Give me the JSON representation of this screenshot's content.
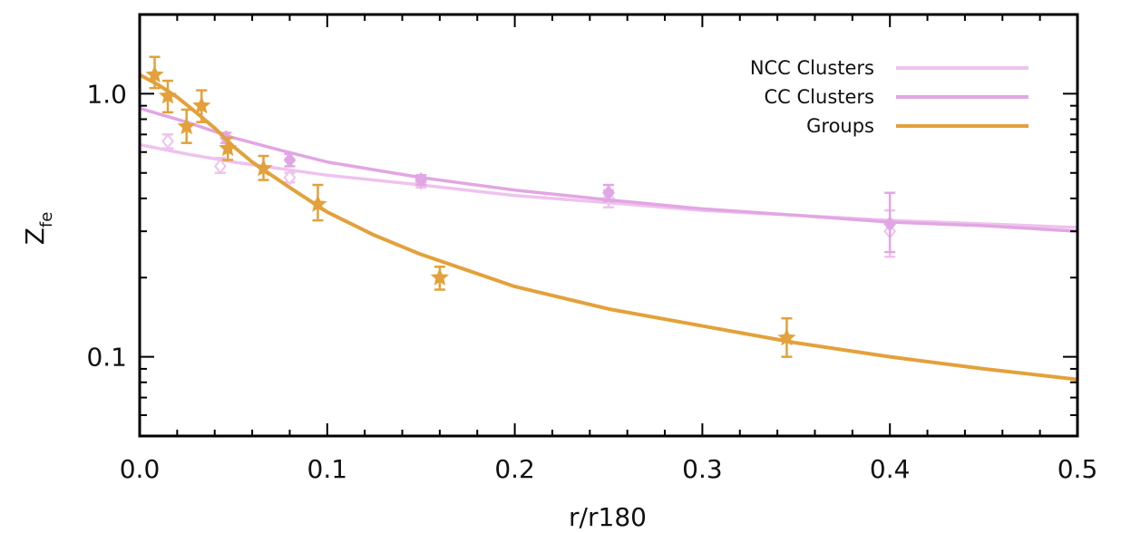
{
  "chart_data": {
    "type": "scatter",
    "title": "",
    "xlabel": "r/r180",
    "ylabel": "Z",
    "ylabel_sub": "fe",
    "xlim": [
      0.0,
      0.5
    ],
    "ylim": [
      0.05,
      2.0
    ],
    "yscale": "log",
    "grid": false,
    "legend_position": "top-right",
    "x_ticks": [
      {
        "value": 0.0,
        "label": "0.0"
      },
      {
        "value": 0.1,
        "label": "0.1"
      },
      {
        "value": 0.2,
        "label": "0.2"
      },
      {
        "value": 0.3,
        "label": "0.3"
      },
      {
        "value": 0.4,
        "label": "0.4"
      },
      {
        "value": 0.5,
        "label": "0.5"
      }
    ],
    "y_ticks": [
      {
        "value": 1.0,
        "label": "1.0"
      },
      {
        "value": 0.1,
        "label": "0.1"
      }
    ],
    "series": [
      {
        "name": "NCC Clusters",
        "color": "#efc2ee",
        "marker": "diamond-open",
        "points": [
          {
            "x": 0.015,
            "y": 0.66,
            "ylo": 0.62,
            "yhi": 0.7
          },
          {
            "x": 0.043,
            "y": 0.53,
            "ylo": 0.5,
            "yhi": 0.57
          },
          {
            "x": 0.08,
            "y": 0.48,
            "ylo": 0.46,
            "yhi": 0.5
          },
          {
            "x": 0.15,
            "y": 0.46,
            "ylo": 0.44,
            "yhi": 0.48
          },
          {
            "x": 0.25,
            "y": 0.4,
            "ylo": 0.37,
            "yhi": 0.43
          },
          {
            "x": 0.4,
            "y": 0.3,
            "ylo": 0.24,
            "yhi": 0.36
          }
        ],
        "fit": [
          {
            "x": 0.0,
            "y": 0.64
          },
          {
            "x": 0.025,
            "y": 0.59
          },
          {
            "x": 0.05,
            "y": 0.55
          },
          {
            "x": 0.1,
            "y": 0.49
          },
          {
            "x": 0.15,
            "y": 0.45
          },
          {
            "x": 0.2,
            "y": 0.41
          },
          {
            "x": 0.25,
            "y": 0.385
          },
          {
            "x": 0.3,
            "y": 0.36
          },
          {
            "x": 0.35,
            "y": 0.345
          },
          {
            "x": 0.4,
            "y": 0.33
          },
          {
            "x": 0.45,
            "y": 0.32
          },
          {
            "x": 0.5,
            "y": 0.31
          }
        ]
      },
      {
        "name": "CC Clusters",
        "color": "#e2a6e4",
        "marker": "diamond-filled",
        "points": [
          {
            "x": 0.046,
            "y": 0.68,
            "ylo": 0.65,
            "yhi": 0.71
          },
          {
            "x": 0.08,
            "y": 0.56,
            "ylo": 0.53,
            "yhi": 0.59
          },
          {
            "x": 0.15,
            "y": 0.47,
            "ylo": 0.45,
            "yhi": 0.49
          },
          {
            "x": 0.25,
            "y": 0.42,
            "ylo": 0.39,
            "yhi": 0.45
          },
          {
            "x": 0.4,
            "y": 0.32,
            "ylo": 0.25,
            "yhi": 0.42
          }
        ],
        "fit": [
          {
            "x": 0.0,
            "y": 0.88
          },
          {
            "x": 0.025,
            "y": 0.78
          },
          {
            "x": 0.05,
            "y": 0.68
          },
          {
            "x": 0.075,
            "y": 0.61
          },
          {
            "x": 0.1,
            "y": 0.55
          },
          {
            "x": 0.15,
            "y": 0.48
          },
          {
            "x": 0.2,
            "y": 0.43
          },
          {
            "x": 0.25,
            "y": 0.395
          },
          {
            "x": 0.3,
            "y": 0.365
          },
          {
            "x": 0.35,
            "y": 0.345
          },
          {
            "x": 0.4,
            "y": 0.325
          },
          {
            "x": 0.45,
            "y": 0.315
          },
          {
            "x": 0.5,
            "y": 0.3
          }
        ]
      },
      {
        "name": "Groups",
        "color": "#e3a13b",
        "marker": "star-filled",
        "points": [
          {
            "x": 0.008,
            "y": 1.18,
            "ylo": 1.05,
            "yhi": 1.38
          },
          {
            "x": 0.015,
            "y": 0.98,
            "ylo": 0.85,
            "yhi": 1.12
          },
          {
            "x": 0.025,
            "y": 0.75,
            "ylo": 0.65,
            "yhi": 0.87
          },
          {
            "x": 0.033,
            "y": 0.9,
            "ylo": 0.78,
            "yhi": 1.03
          },
          {
            "x": 0.047,
            "y": 0.62,
            "ylo": 0.56,
            "yhi": 0.68
          },
          {
            "x": 0.066,
            "y": 0.52,
            "ylo": 0.47,
            "yhi": 0.58
          },
          {
            "x": 0.095,
            "y": 0.38,
            "ylo": 0.33,
            "yhi": 0.45
          },
          {
            "x": 0.16,
            "y": 0.2,
            "ylo": 0.18,
            "yhi": 0.22
          },
          {
            "x": 0.345,
            "y": 0.118,
            "ylo": 0.1,
            "yhi": 0.14
          }
        ],
        "fit": [
          {
            "x": 0.0,
            "y": 1.18
          },
          {
            "x": 0.01,
            "y": 1.08
          },
          {
            "x": 0.02,
            "y": 0.97
          },
          {
            "x": 0.03,
            "y": 0.85
          },
          {
            "x": 0.04,
            "y": 0.74
          },
          {
            "x": 0.05,
            "y": 0.63
          },
          {
            "x": 0.06,
            "y": 0.55
          },
          {
            "x": 0.08,
            "y": 0.44
          },
          {
            "x": 0.1,
            "y": 0.355
          },
          {
            "x": 0.125,
            "y": 0.29
          },
          {
            "x": 0.15,
            "y": 0.245
          },
          {
            "x": 0.2,
            "y": 0.185
          },
          {
            "x": 0.25,
            "y": 0.152
          },
          {
            "x": 0.3,
            "y": 0.131
          },
          {
            "x": 0.35,
            "y": 0.113
          },
          {
            "x": 0.4,
            "y": 0.1
          },
          {
            "x": 0.45,
            "y": 0.09
          },
          {
            "x": 0.5,
            "y": 0.082
          }
        ]
      }
    ]
  }
}
